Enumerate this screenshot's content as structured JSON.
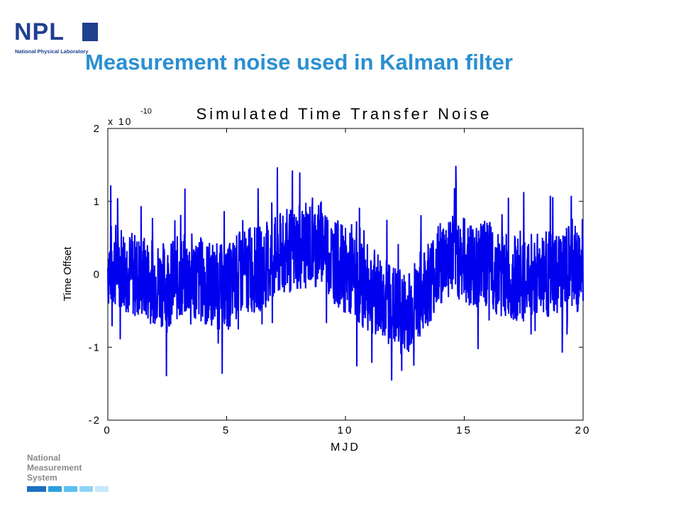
{
  "logo": {
    "letters": "NPL",
    "subtitle": "National Physical Laboratory",
    "color": "#1f3f8f"
  },
  "slide_title": "Measurement noise used in Kalman filter",
  "footer_logo": {
    "lines": [
      "National",
      "Measurement",
      "System"
    ],
    "bar_colors": [
      "#1b6fc0",
      "#2b9fe0",
      "#5cc0ee",
      "#8fd4f4",
      "#c5e9fa"
    ]
  },
  "chart_data": {
    "type": "line",
    "title": "Simulated Time Transfer Noise",
    "xlabel": "MJD",
    "ylabel": "Time Offset",
    "y_multiplier": "x 10",
    "y_exponent": "-10",
    "xlim": [
      0,
      20
    ],
    "ylim": [
      -2,
      2
    ],
    "xticks": [
      "0",
      "5",
      "10",
      "15",
      "20"
    ],
    "yticks": [
      "-2",
      "-1",
      "0",
      "1",
      "2"
    ],
    "grid": false,
    "line_color": "#0000ee",
    "series": [
      {
        "values_x": [
          0,
          0.5,
          1,
          1.5,
          2,
          2.5,
          3,
          3.5,
          4,
          4.5,
          5,
          5.5,
          6,
          6.5,
          7,
          7.5,
          8,
          8.5,
          9,
          9.5,
          10,
          10.5,
          11,
          11.5,
          12,
          12.5,
          13,
          13.5,
          14,
          14.5,
          15,
          15.5,
          16,
          16.5,
          17,
          17.5,
          18,
          18.5,
          19,
          19.5,
          20
        ],
        "values_y": [
          0.1,
          0.15,
          0.0,
          -0.05,
          -0.1,
          -0.15,
          -0.05,
          0.0,
          -0.1,
          -0.15,
          -0.2,
          0.0,
          0.05,
          0.1,
          0.2,
          0.3,
          0.35,
          0.4,
          0.45,
          0.2,
          0.05,
          -0.1,
          -0.2,
          -0.3,
          -0.45,
          -0.55,
          -0.35,
          -0.1,
          0.15,
          0.3,
          0.2,
          0.1,
          0.15,
          0.0,
          -0.05,
          -0.1,
          0.05,
          0.0,
          -0.05,
          0.1,
          0.05
        ]
      }
    ]
  }
}
